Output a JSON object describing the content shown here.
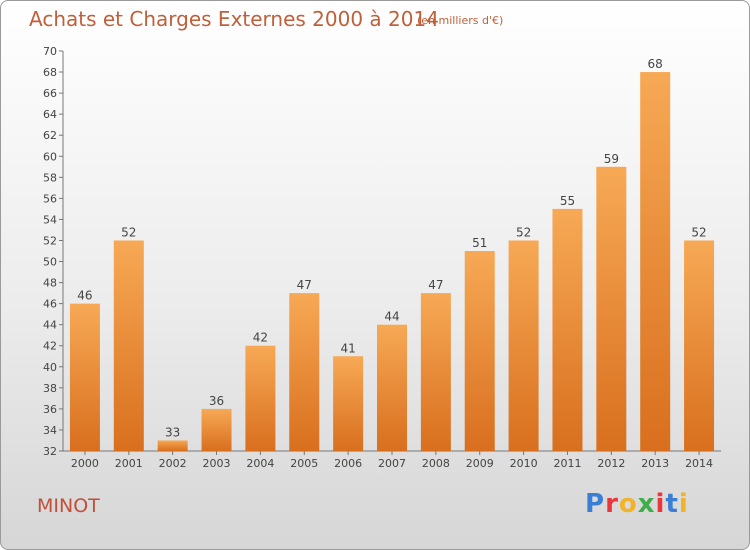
{
  "header": {
    "title": "Achats et Charges Externes 2000 à 2014",
    "subtitle": "(en milliers d'€)"
  },
  "footer": {
    "town": "MINOT",
    "logo_letters": [
      "P",
      "r",
      "o",
      "x",
      "i",
      "t",
      "i"
    ]
  },
  "colors": {
    "bar_light": "#f7a955",
    "bar_dark": "#d86f1e",
    "logo": [
      "#3a7fd5",
      "#e8383b",
      "#f2b22a",
      "#3fae49",
      "#e8383b",
      "#3a7fd5",
      "#f2b22a"
    ]
  },
  "chart_data": {
    "type": "bar",
    "title": "Achats et Charges Externes 2000 à 2014",
    "subtitle": "(en milliers d'€)",
    "categories": [
      "2000",
      "2001",
      "2002",
      "2003",
      "2004",
      "2005",
      "2006",
      "2007",
      "2008",
      "2009",
      "2010",
      "2011",
      "2012",
      "2013",
      "2014"
    ],
    "values": [
      46,
      52,
      33,
      36,
      42,
      47,
      41,
      44,
      47,
      51,
      52,
      55,
      59,
      68,
      52
    ],
    "ylim": [
      32,
      70
    ],
    "ytick_step": 2,
    "grid": false,
    "data_labels": true
  }
}
